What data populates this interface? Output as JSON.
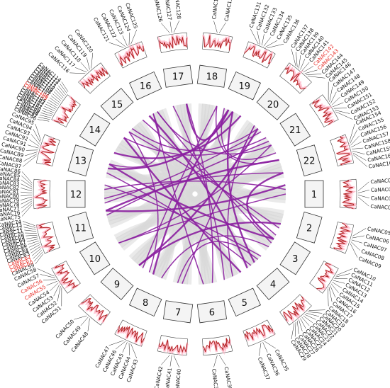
{
  "chromosomes": [
    "1",
    "2",
    "3",
    "4",
    "5",
    "6",
    "7",
    "8",
    "9",
    "10",
    "11",
    "12",
    "13",
    "14",
    "15",
    "16",
    "17",
    "18",
    "19",
    "20",
    "21",
    "22"
  ],
  "gene_groups": [
    {
      "chr": 1,
      "genes": [
        "CaNAC01",
        "CaNAC02",
        "CaNAC03",
        "CaNAC04"
      ],
      "highlight": []
    },
    {
      "chr": 2,
      "genes": [
        "CaNAC05",
        "CaNAC06",
        "CaNAC07",
        "CaNAC08",
        "CaNAC09"
      ],
      "highlight": []
    },
    {
      "chr": 3,
      "genes": [
        "CaNAC10",
        "CaNAC11",
        "CaNAC12",
        "CaNAC13",
        "CaNAC14",
        "CaNAC15",
        "CaNAC16",
        "CaNAC17",
        "CaNAC18"
      ],
      "highlight": []
    },
    {
      "chr": 4,
      "genes": [
        "CaNAC19",
        "CaNAC20",
        "CaNAC21",
        "CaNAC22",
        "CaNAC23",
        "CaNAC24",
        "CaNAC25",
        "CaNAC26",
        "CaNAC27",
        "CaNAC28",
        "CaNAC29"
      ],
      "highlight": []
    },
    {
      "chr": 5,
      "genes": [
        "CaNAC35",
        "CaNAC36",
        "CaNAC37"
      ],
      "highlight": []
    },
    {
      "chr": 6,
      "genes": [
        "CaNAC38",
        "CaNAC39"
      ],
      "highlight": []
    },
    {
      "chr": 7,
      "genes": [
        "CaNAC40",
        "CaNAC41",
        "CaNAC42"
      ],
      "highlight": []
    },
    {
      "chr": 8,
      "genes": [
        "CaNAC43",
        "CaNAC44",
        "CaNAC45",
        "CaNAC46",
        "CaNAC47"
      ],
      "highlight": []
    },
    {
      "chr": 9,
      "genes": [
        "CaNAC48",
        "CaNAC49",
        "CaNAC50"
      ],
      "highlight": []
    },
    {
      "chr": 10,
      "genes": [
        "CaNAC51",
        "CaNAC52",
        "CaNAC53",
        "CaNAC54",
        "CaNAC55",
        "CaNAC56",
        "CaNAC57",
        "CaNAC58"
      ],
      "highlight": [
        "CaNAC55",
        "CaNAC56"
      ]
    },
    {
      "chr": 11,
      "genes": [
        "CaNAC59",
        "CaNAC60",
        "CaNAC61",
        "CaNAC62",
        "CaNAC63",
        "CaNAC64",
        "CaNAC65",
        "CaNAC66",
        "CaNAC67",
        "CaNAC68",
        "CaNAC69",
        "CaNAC70",
        "CaNAC71",
        "CaNAC72",
        "CaNAC73",
        "CaNAC74"
      ],
      "highlight": [
        "CaNAC60",
        "CaNAC61",
        "CaNAC62"
      ]
    },
    {
      "chr": 12,
      "genes": [
        "CaNAC75",
        "CaNAC76",
        "CaNAC77",
        "CaNAC78",
        "CaNAC79",
        "CaNAC80",
        "CaNAC81",
        "CaNAC82",
        "CaNAC83",
        "CaNAC84",
        "CaNAC85",
        "CaNAC86"
      ],
      "highlight": []
    },
    {
      "chr": 13,
      "genes": [
        "CaNAC87",
        "CaNAC88",
        "CaNAC89",
        "CaNAC90",
        "CaNAC91",
        "CaNAC92",
        "CaNAC93",
        "CaNAC94",
        "CaNAC95"
      ],
      "highlight": []
    },
    {
      "chr": 14,
      "genes": [
        "CaNAC96",
        "CaNAC97",
        "CaNAC98",
        "CaNAC99",
        "CaNAC100",
        "CaNAC101",
        "CaNAC102",
        "CaNAC103",
        "CaNAC104",
        "CaNAC105",
        "CaNAC106",
        "CaNAC107",
        "CaNAC108",
        "CaNAC109",
        "CaNAC110",
        "CaNAC111",
        "CaNAC112",
        "CaNAC113",
        "CaNAC114"
      ],
      "highlight": [
        "CaNAC105",
        "CaNAC106"
      ]
    },
    {
      "chr": 15,
      "genes": [
        "CaNAC116",
        "CaNAC117",
        "CaNAC118",
        "CaNAC119",
        "CaNAC120"
      ],
      "highlight": []
    },
    {
      "chr": 16,
      "genes": [
        "CaNAC121",
        "CaNAC122",
        "CaNAC123",
        "CaNAC124",
        "CaNAC125"
      ],
      "highlight": []
    },
    {
      "chr": 17,
      "genes": [
        "CaNAC126",
        "CaNAC127",
        "CaNAC128"
      ],
      "highlight": []
    },
    {
      "chr": 18,
      "genes": [
        "CaNAC129",
        "CaNAC130"
      ],
      "highlight": []
    },
    {
      "chr": 19,
      "genes": [
        "CaNAC131",
        "CaNAC132",
        "CaNAC133",
        "CaNAC134",
        "CaNAC135",
        "CaNAC136"
      ],
      "highlight": []
    },
    {
      "chr": 20,
      "genes": [
        "CaNAC137",
        "CaNAC138",
        "CaNAC139",
        "CaNAC140",
        "CaNAC141",
        "CaNAC142",
        "CaNAC143",
        "CaNAC144",
        "CaNAC145"
      ],
      "highlight": [
        "CaNAC142",
        "CaNAC143"
      ]
    },
    {
      "chr": 21,
      "genes": [
        "CaNAC146",
        "CaNAC147",
        "CaNAC148",
        "CaNAC149",
        "CaNAC150",
        "CaNAC151",
        "CaNAC152",
        "CaNAC153"
      ],
      "highlight": []
    },
    {
      "chr": 22,
      "genes": [
        "CaNAC154",
        "CaNAC155",
        "CaNAC156",
        "CaNAC157",
        "CaNAC158",
        "CaNAC159",
        "CaNAC160",
        "CaNAC161"
      ],
      "highlight": []
    }
  ],
  "links": [
    [
      1,
      11
    ],
    [
      1,
      12
    ],
    [
      1,
      10
    ],
    [
      2,
      9
    ],
    [
      2,
      15
    ],
    [
      3,
      15
    ],
    [
      3,
      13
    ],
    [
      3,
      16
    ],
    [
      3,
      8
    ],
    [
      4,
      16
    ],
    [
      4,
      12
    ],
    [
      4,
      7
    ],
    [
      4,
      19
    ],
    [
      4,
      13
    ],
    [
      5,
      17
    ],
    [
      5,
      14
    ],
    [
      6,
      17
    ],
    [
      7,
      20
    ],
    [
      8,
      19
    ],
    [
      8,
      15
    ],
    [
      9,
      18
    ],
    [
      9,
      20
    ],
    [
      10,
      21
    ],
    [
      11,
      21
    ],
    [
      11,
      22
    ],
    [
      12,
      20
    ],
    [
      12,
      22
    ],
    [
      13,
      19
    ],
    [
      13,
      16
    ],
    [
      14,
      21
    ],
    [
      14,
      19
    ],
    [
      15,
      20
    ],
    [
      16,
      21
    ],
    [
      17,
      19
    ],
    [
      18,
      22
    ],
    [
      19,
      21
    ],
    [
      3,
      22
    ],
    [
      5,
      20
    ],
    [
      6,
      16
    ]
  ],
  "colors": {
    "link": "#8b1fa0",
    "background_link": "#d9d9d9",
    "chr_fill": "#f4f4f4",
    "chr_stroke": "#333333",
    "track_line": "#b22222",
    "track_glow": "#ffb6c8",
    "highlight_text": "#e8302a"
  }
}
